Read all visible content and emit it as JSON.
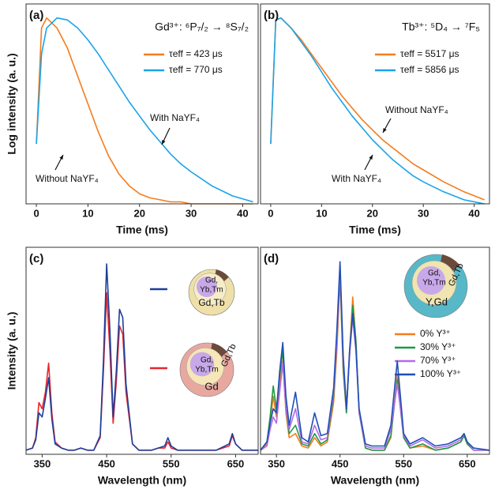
{
  "chart_data": [
    {
      "type": "line",
      "panel_label": "(a)",
      "title": "Gd³⁺: ⁶P₇/₂ → ⁸S₇/₂",
      "xlabel": "Time (ms)",
      "ylabel": "Log intensity (a. u.)",
      "x": [
        0,
        1,
        2,
        4,
        6,
        8,
        10,
        12,
        14,
        16,
        18,
        20,
        22,
        24,
        26,
        28,
        30,
        34,
        38,
        42
      ],
      "series": [
        {
          "name": "τeff = 423 μs",
          "color": "#f47c1e",
          "values": [
            0.3,
            0.88,
            0.93,
            0.88,
            0.78,
            0.64,
            0.5,
            0.36,
            0.24,
            0.15,
            0.09,
            0.05,
            0.03,
            0.02,
            0.01,
            0.01,
            0,
            0,
            0,
            0
          ]
        },
        {
          "name": "τeff = 770 μs",
          "color": "#1aa3e8",
          "values": [
            0.3,
            0.75,
            0.88,
            0.93,
            0.92,
            0.88,
            0.82,
            0.75,
            0.67,
            0.59,
            0.51,
            0.44,
            0.37,
            0.31,
            0.25,
            0.2,
            0.16,
            0.09,
            0.04,
            0.01
          ]
        }
      ],
      "annotations": [
        "With NaYF₄",
        "Without NaYF₄"
      ],
      "xlim": [
        -2,
        43
      ],
      "xticks": [
        0,
        10,
        20,
        30,
        40
      ],
      "ylim": [
        0,
        1
      ]
    },
    {
      "type": "line",
      "panel_label": "(b)",
      "title": "Tb³⁺: ⁵D₄ → ⁷F₅",
      "xlabel": "Time (ms)",
      "x": [
        0,
        1,
        2,
        4,
        6,
        8,
        10,
        12,
        14,
        16,
        18,
        20,
        22,
        24,
        26,
        28,
        30,
        34,
        38,
        42
      ],
      "series": [
        {
          "name": "τeff = 5517 μs",
          "color": "#f47c1e",
          "values": [
            0.3,
            0.92,
            0.93,
            0.88,
            0.82,
            0.75,
            0.68,
            0.61,
            0.54,
            0.48,
            0.42,
            0.37,
            0.32,
            0.28,
            0.24,
            0.2,
            0.17,
            0.11,
            0.06,
            0.02
          ]
        },
        {
          "name": "τeff = 5856 μs",
          "color": "#1aa3e8",
          "values": [
            0.3,
            0.92,
            0.93,
            0.88,
            0.81,
            0.74,
            0.66,
            0.58,
            0.51,
            0.44,
            0.38,
            0.32,
            0.27,
            0.22,
            0.18,
            0.14,
            0.11,
            0.06,
            0.02,
            0
          ]
        }
      ],
      "annotations": [
        "Without NaYF₄",
        "With NaYF₄"
      ],
      "xlim": [
        -2,
        43
      ],
      "xticks": [
        0,
        10,
        20,
        30,
        40
      ],
      "ylim": [
        0,
        1
      ]
    },
    {
      "type": "line",
      "panel_label": "(c)",
      "xlabel": "Wavelength (nm)",
      "ylabel": "Intensity (a. u.)",
      "x": [
        325,
        335,
        340,
        345,
        350,
        355,
        360,
        365,
        370,
        380,
        390,
        400,
        410,
        420,
        430,
        440,
        445,
        450,
        455,
        460,
        465,
        470,
        475,
        480,
        490,
        500,
        520,
        530,
        540,
        545,
        550,
        560,
        580,
        600,
        620,
        640,
        645,
        650,
        660,
        685
      ],
      "series": [
        {
          "color": "#e8262d",
          "values": [
            0.02,
            0.03,
            0.08,
            0.25,
            0.22,
            0.3,
            0.44,
            0.2,
            0.06,
            0.03,
            0.02,
            0.02,
            0.03,
            0.02,
            0.02,
            0.08,
            0.4,
            0.78,
            0.5,
            0.15,
            0.35,
            0.62,
            0.58,
            0.3,
            0.05,
            0.02,
            0.02,
            0.03,
            0.03,
            0.06,
            0.03,
            0.02,
            0.02,
            0.02,
            0.02,
            0.04,
            0.09,
            0.05,
            0.02,
            0.02
          ]
        },
        {
          "color": "#1d3f9a",
          "values": [
            0.02,
            0.03,
            0.07,
            0.2,
            0.18,
            0.27,
            0.37,
            0.17,
            0.05,
            0.03,
            0.02,
            0.02,
            0.03,
            0.02,
            0.02,
            0.09,
            0.45,
            0.92,
            0.6,
            0.18,
            0.4,
            0.7,
            0.66,
            0.34,
            0.05,
            0.02,
            0.02,
            0.03,
            0.04,
            0.08,
            0.04,
            0.02,
            0.02,
            0.02,
            0.02,
            0.05,
            0.1,
            0.05,
            0.02,
            0.02
          ]
        }
      ],
      "annotations": [
        "Gd,",
        "Yb,Tm",
        "Gd,Tb",
        "Gd,",
        "Yb,Tm",
        "Gd,Tb",
        "Gd"
      ],
      "xlim": [
        325,
        685
      ],
      "xticks": [
        350,
        450,
        550,
        650
      ],
      "ylim": [
        0,
        1
      ]
    },
    {
      "type": "line",
      "panel_label": "(d)",
      "xlabel": "Wavelength (nm)",
      "x": [
        325,
        335,
        340,
        345,
        350,
        355,
        360,
        365,
        370,
        380,
        390,
        400,
        410,
        420,
        430,
        440,
        445,
        450,
        455,
        460,
        465,
        470,
        475,
        480,
        490,
        500,
        520,
        530,
        540,
        545,
        550,
        560,
        580,
        600,
        620,
        640,
        645,
        650,
        660,
        685
      ],
      "series": [
        {
          "name": "0% Y³⁺",
          "color": "#f47c1e",
          "values": [
            0.02,
            0.05,
            0.15,
            0.28,
            0.18,
            0.35,
            0.45,
            0.2,
            0.08,
            0.1,
            0.04,
            0.03,
            0.08,
            0.04,
            0.06,
            0.25,
            0.5,
            0.85,
            0.4,
            0.2,
            0.5,
            0.76,
            0.55,
            0.2,
            0.03,
            0.02,
            0.02,
            0.08,
            0.38,
            0.25,
            0.08,
            0.03,
            0.04,
            0.02,
            0.03,
            0.06,
            0.09,
            0.05,
            0.02,
            0.02
          ]
        },
        {
          "name": "30% Y³⁺",
          "color": "#1e9a46",
          "values": [
            0.02,
            0.06,
            0.18,
            0.33,
            0.22,
            0.38,
            0.5,
            0.22,
            0.1,
            0.14,
            0.05,
            0.04,
            0.1,
            0.05,
            0.07,
            0.28,
            0.55,
            0.88,
            0.42,
            0.2,
            0.48,
            0.72,
            0.55,
            0.2,
            0.03,
            0.02,
            0.02,
            0.09,
            0.36,
            0.22,
            0.08,
            0.03,
            0.05,
            0.02,
            0.03,
            0.06,
            0.09,
            0.05,
            0.02,
            0.02
          ]
        },
        {
          "name": "70% Y³⁺",
          "color": "#b26be8",
          "values": [
            0.02,
            0.04,
            0.12,
            0.18,
            0.15,
            0.3,
            0.44,
            0.22,
            0.12,
            0.22,
            0.06,
            0.05,
            0.14,
            0.07,
            0.08,
            0.3,
            0.55,
            0.9,
            0.45,
            0.22,
            0.48,
            0.66,
            0.5,
            0.2,
            0.04,
            0.03,
            0.03,
            0.12,
            0.34,
            0.22,
            0.09,
            0.04,
            0.07,
            0.03,
            0.04,
            0.07,
            0.1,
            0.06,
            0.02,
            0.02
          ]
        },
        {
          "name": "100% Y³⁺",
          "color": "#1f4fb5",
          "values": [
            0.02,
            0.06,
            0.15,
            0.22,
            0.2,
            0.4,
            0.54,
            0.28,
            0.14,
            0.3,
            0.08,
            0.06,
            0.2,
            0.09,
            0.1,
            0.32,
            0.6,
            0.93,
            0.48,
            0.22,
            0.5,
            0.68,
            0.52,
            0.22,
            0.05,
            0.04,
            0.04,
            0.14,
            0.45,
            0.28,
            0.1,
            0.05,
            0.08,
            0.04,
            0.05,
            0.08,
            0.1,
            0.06,
            0.03,
            0.02
          ]
        }
      ],
      "annotations": [
        "Gd,",
        "Yb,Tm",
        "Gd,Tb",
        "Y,Gd"
      ],
      "xlim": [
        325,
        685
      ],
      "xticks": [
        350,
        450,
        550,
        650
      ],
      "ylim": [
        0,
        1
      ]
    }
  ]
}
